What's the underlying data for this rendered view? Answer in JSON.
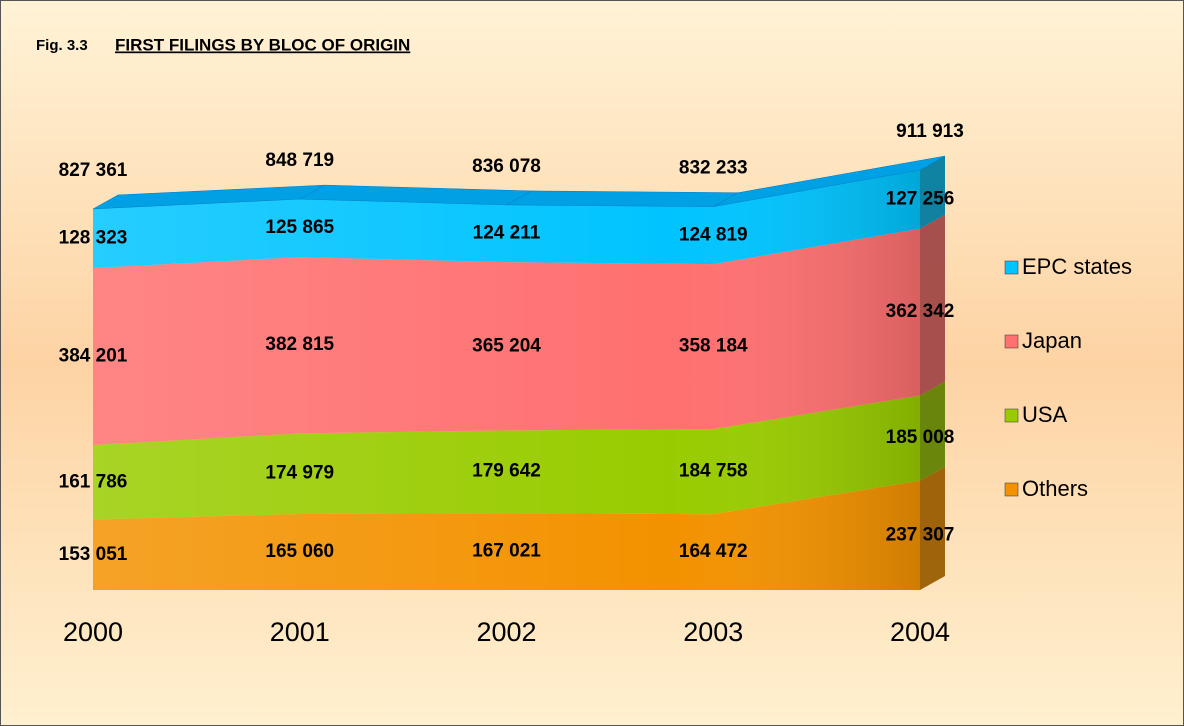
{
  "chart_data": {
    "type": "area",
    "stacked": true,
    "fig_label": "Fig. 3.3",
    "title": "FIRST FILINGS BY BLOC OF ORIGIN",
    "categories": [
      "2000",
      "2001",
      "2002",
      "2003",
      "2004"
    ],
    "series": [
      {
        "name": "Others",
        "color": "#f39200",
        "values": [
          153051,
          165060,
          167021,
          164472,
          237307
        ],
        "value_labels": [
          "153 051",
          "165 060",
          "167 021",
          "164 472",
          "237 307"
        ]
      },
      {
        "name": "USA",
        "color": "#99cc00",
        "values": [
          161786,
          174979,
          179642,
          184758,
          185008
        ],
        "value_labels": [
          "161 786",
          "174 979",
          "179 642",
          "184 758",
          "185 008"
        ]
      },
      {
        "name": "Japan",
        "color": "#ff7070",
        "values": [
          384201,
          382815,
          365204,
          358184,
          362342
        ],
        "value_labels": [
          "384 201",
          "382 815",
          "365 204",
          "358 184",
          "362 342"
        ]
      },
      {
        "name": "EPC states",
        "color": "#00c4ff",
        "values": [
          128323,
          125865,
          124211,
          124819,
          127256
        ],
        "value_labels": [
          "128 323",
          "125 865",
          "124 211",
          "124 819",
          "127 256"
        ]
      }
    ],
    "totals": [
      827361,
      848719,
      836078,
      832233,
      911913
    ],
    "totals_labels": [
      "827 361",
      "848 719",
      "836 078",
      "832 233",
      "911 913"
    ]
  }
}
